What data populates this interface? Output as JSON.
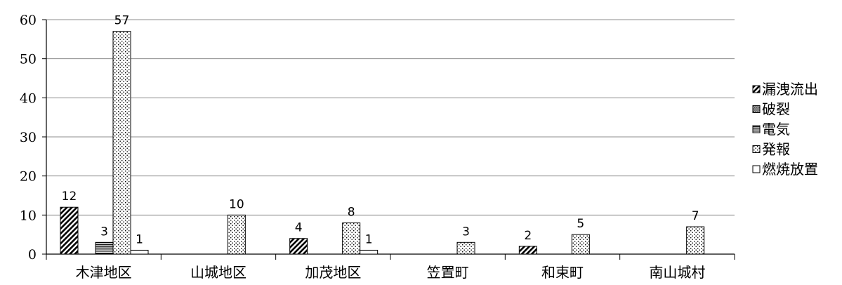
{
  "chart_data": {
    "type": "bar",
    "title": "",
    "xlabel": "",
    "ylabel": "",
    "ylim": [
      0,
      60
    ],
    "yticks": [
      0,
      10,
      20,
      30,
      40,
      50,
      60
    ],
    "grid": "horizontal",
    "legend_position": "right",
    "categories": [
      "木津地区",
      "山城地区",
      "加茂地区",
      "笠置町",
      "和束町",
      "南山城村"
    ],
    "series": [
      {
        "name": "漏洩流出",
        "pattern": "diagonal-lines",
        "values": [
          12,
          0,
          4,
          0,
          2,
          0
        ],
        "labels": [
          "12",
          "",
          "4",
          "",
          "2",
          ""
        ]
      },
      {
        "name": "破裂",
        "pattern": "crosshatch",
        "values": [
          0,
          0,
          0,
          0,
          0,
          0
        ],
        "labels": [
          "",
          "",
          "",
          "",
          "",
          ""
        ]
      },
      {
        "name": "電気",
        "pattern": "horizontal-lines",
        "values": [
          3,
          0,
          0,
          0,
          0,
          0
        ],
        "labels": [
          "3",
          "",
          "",
          "",
          "",
          ""
        ]
      },
      {
        "name": "発報",
        "pattern": "dots",
        "values": [
          57,
          10,
          8,
          3,
          5,
          7
        ],
        "labels": [
          "57",
          "10",
          "8",
          "3",
          "5",
          "7"
        ]
      },
      {
        "name": "燃焼放置",
        "pattern": "none",
        "values": [
          1,
          0,
          1,
          0,
          0,
          0
        ],
        "labels": [
          "1",
          "",
          "1",
          "",
          "",
          ""
        ]
      }
    ]
  }
}
